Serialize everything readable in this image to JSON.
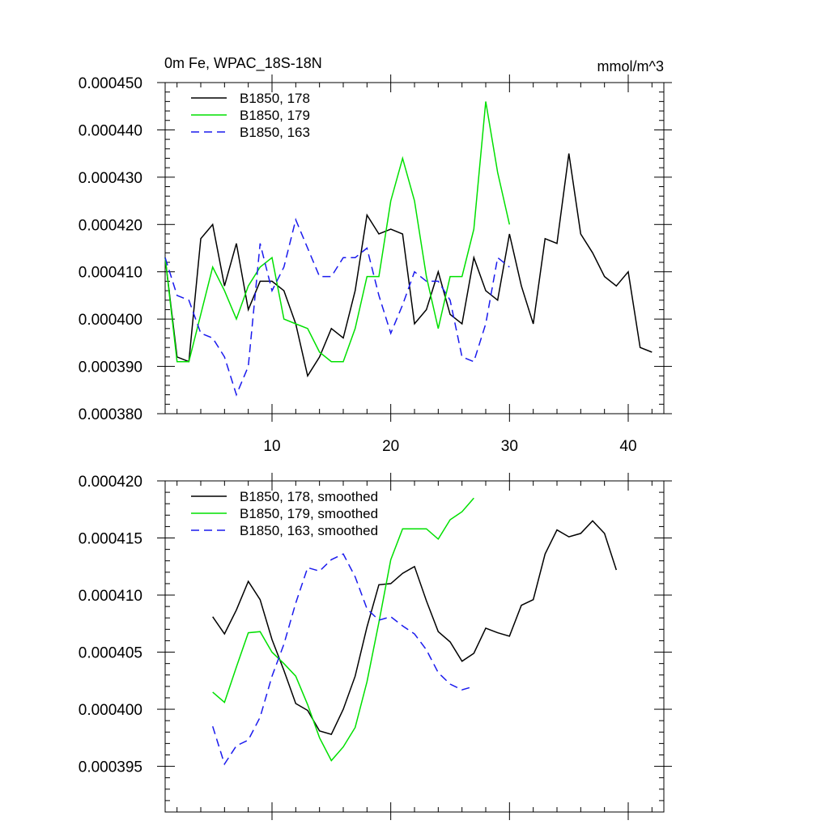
{
  "colors": {
    "s178": "#000000",
    "s179": "#00e000",
    "s163": "#1a1aee"
  },
  "chart_data": [
    {
      "type": "line",
      "title_left": "0m Fe, WPAC_18S-18N",
      "title_right": "mmol/m^3",
      "xlim": [
        1,
        43
      ],
      "ylim": [
        0.00038,
        0.00045
      ],
      "xticks": [
        10,
        20,
        30,
        40
      ],
      "xtick_labels": [
        "10",
        "20",
        "30",
        "40"
      ],
      "yticks": [
        0.00038,
        0.00039,
        0.0004,
        0.00041,
        0.00042,
        0.00043,
        0.00044,
        0.00045
      ],
      "ytick_labels": [
        "0.000380",
        "0.000390",
        "0.000400",
        "0.000410",
        "0.000420",
        "0.000430",
        "0.000440",
        "0.000450"
      ],
      "series": [
        {
          "key": "s178",
          "name": "B1850, 178",
          "dash": false,
          "x": [
            1,
            2,
            3,
            4,
            5,
            6,
            7,
            8,
            9,
            10,
            11,
            12,
            13,
            14,
            15,
            16,
            17,
            18,
            19,
            20,
            21,
            22,
            23,
            24,
            25,
            26,
            27,
            28,
            29,
            30,
            31,
            32,
            33,
            34,
            35,
            36,
            37,
            38,
            39,
            40,
            41,
            42
          ],
          "values": [
            0.000413,
            0.000392,
            0.000391,
            0.000417,
            0.00042,
            0.000407,
            0.000416,
            0.000402,
            0.000408,
            0.000408,
            0.000406,
            0.000399,
            0.000388,
            0.000392,
            0.000398,
            0.000396,
            0.000406,
            0.000422,
            0.000418,
            0.000419,
            0.000418,
            0.000399,
            0.000402,
            0.00041,
            0.000401,
            0.000399,
            0.000413,
            0.000406,
            0.000404,
            0.000418,
            0.000407,
            0.000399,
            0.000417,
            0.000416,
            0.000435,
            0.000418,
            0.000414,
            0.000409,
            0.000407,
            0.00041,
            0.000394,
            0.000393
          ]
        },
        {
          "key": "s179",
          "name": "B1850, 179",
          "dash": false,
          "x": [
            1,
            2,
            3,
            4,
            5,
            6,
            7,
            8,
            9,
            10,
            11,
            12,
            13,
            14,
            15,
            16,
            17,
            18,
            19,
            20,
            21,
            22,
            23,
            24,
            25,
            26,
            27,
            28,
            29,
            30
          ],
          "values": [
            0.000413,
            0.000391,
            0.000391,
            0.000401,
            0.000411,
            0.000406,
            0.0004,
            0.000407,
            0.000411,
            0.000413,
            0.0004,
            0.000399,
            0.000398,
            0.000393,
            0.000391,
            0.000391,
            0.000398,
            0.000409,
            0.000409,
            0.000425,
            0.000434,
            0.000425,
            0.000409,
            0.000398,
            0.000409,
            0.000409,
            0.000419,
            0.000446,
            0.000431,
            0.00042
          ]
        },
        {
          "key": "s163",
          "name": "B1850, 163",
          "dash": true,
          "x": [
            1,
            2,
            3,
            4,
            5,
            6,
            7,
            8,
            9,
            10,
            11,
            12,
            13,
            14,
            15,
            16,
            17,
            18,
            19,
            20,
            21,
            22,
            23,
            24,
            25,
            26,
            27,
            28,
            29,
            30
          ],
          "values": [
            0.000413,
            0.000405,
            0.000404,
            0.000397,
            0.000396,
            0.000392,
            0.000384,
            0.00039,
            0.000416,
            0.000406,
            0.000411,
            0.000421,
            0.000415,
            0.000409,
            0.000409,
            0.000413,
            0.000413,
            0.000415,
            0.000405,
            0.000397,
            0.000403,
            0.00041,
            0.000408,
            0.000408,
            0.000404,
            0.000392,
            0.000391,
            0.000399,
            0.000413,
            0.000411
          ]
        }
      ]
    },
    {
      "type": "line",
      "xlim": [
        1,
        43
      ],
      "ylim": [
        0.000391,
        0.00042
      ],
      "xticks": [
        10,
        20,
        30,
        40
      ],
      "xtick_labels": [],
      "yticks": [
        0.000395,
        0.0004,
        0.000405,
        0.00041,
        0.000415,
        0.00042
      ],
      "ytick_labels": [
        "0.000395",
        "0.000400",
        "0.000405",
        "0.000410",
        "0.000415",
        "0.000420"
      ],
      "series": [
        {
          "key": "s178",
          "name": "B1850, 178, smoothed",
          "dash": false,
          "x": [
            5,
            6,
            7,
            8,
            9,
            10,
            11,
            12,
            13,
            14,
            15,
            16,
            17,
            18,
            19,
            20,
            21,
            22,
            23,
            24,
            25,
            26,
            27,
            28,
            29,
            30,
            31,
            32,
            33,
            34,
            35,
            36,
            37,
            38,
            39
          ],
          "values": [
            0.0004081,
            0.0004066,
            0.0004087,
            0.0004112,
            0.0004096,
            0.0004061,
            0.0004034,
            0.0004005,
            0.0003999,
            0.0003981,
            0.0003978,
            0.0004,
            0.0004029,
            0.0004072,
            0.0004109,
            0.000411,
            0.0004119,
            0.0004125,
            0.0004095,
            0.0004068,
            0.0004059,
            0.0004042,
            0.0004049,
            0.0004071,
            0.0004067,
            0.0004064,
            0.0004091,
            0.0004096,
            0.0004136,
            0.0004157,
            0.0004151,
            0.0004154,
            0.0004165,
            0.0004154,
            0.0004122
          ]
        },
        {
          "key": "s179",
          "name": "B1850, 179, smoothed",
          "dash": false,
          "x": [
            5,
            6,
            7,
            8,
            9,
            10,
            11,
            12,
            13,
            14,
            15,
            16,
            17,
            18,
            19,
            20,
            21,
            22,
            23,
            24,
            25,
            26,
            27
          ],
          "values": [
            0.0004015,
            0.0004006,
            0.0004037,
            0.0004067,
            0.0004068,
            0.000405,
            0.000404,
            0.0004029,
            0.0004004,
            0.0003975,
            0.0003955,
            0.0003967,
            0.0003984,
            0.0004024,
            0.0004076,
            0.0004131,
            0.0004158,
            0.0004158,
            0.0004158,
            0.0004149,
            0.0004166,
            0.0004173,
            0.0004185
          ]
        },
        {
          "key": "s163",
          "name": "B1850, 163, smoothed",
          "dash": true,
          "x": [
            5,
            6,
            7,
            8,
            9,
            10,
            11,
            12,
            13,
            14,
            15,
            16,
            17,
            18,
            19,
            20,
            21,
            22,
            23,
            24,
            25,
            26,
            27
          ],
          "values": [
            0.0003985,
            0.0003952,
            0.0003968,
            0.0003973,
            0.0003993,
            0.0004029,
            0.0004057,
            0.0004093,
            0.0004124,
            0.0004121,
            0.0004131,
            0.0004136,
            0.0004116,
            0.0004088,
            0.0004078,
            0.0004081,
            0.0004073,
            0.0004066,
            0.0004052,
            0.0004032,
            0.0004022,
            0.0004017,
            0.000402
          ]
        }
      ]
    }
  ]
}
